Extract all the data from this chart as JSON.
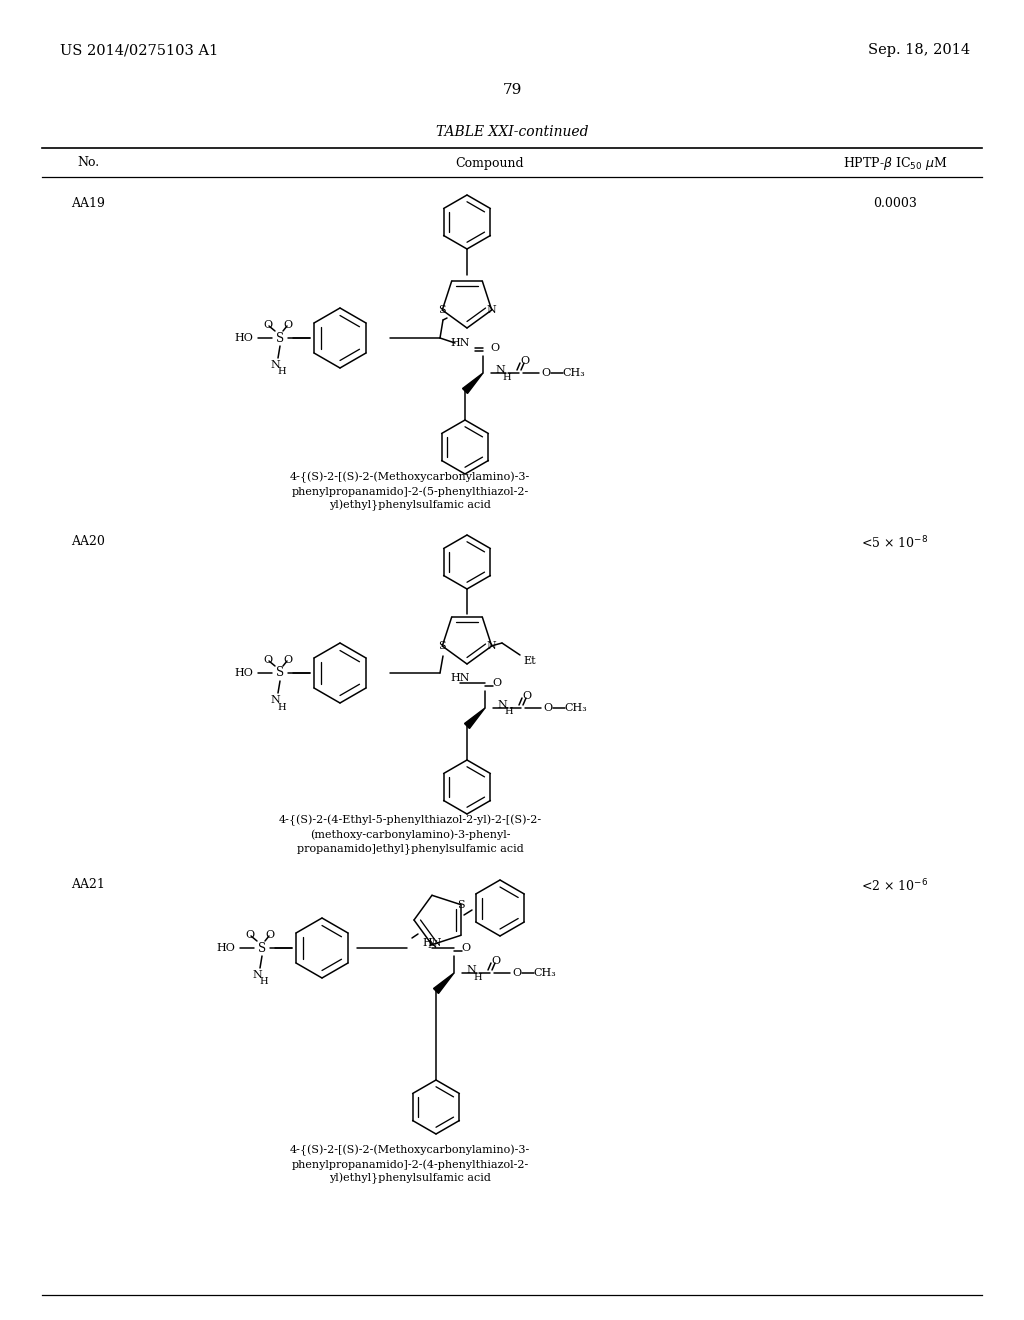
{
  "background_color": "#ffffff",
  "page_header_left": "US 2014/0275103 A1",
  "page_header_right": "Sep. 18, 2014",
  "page_number": "79",
  "table_title": "TABLE XXI-continued",
  "col_headers": [
    "No.",
    "Compound",
    "HPTP-β IC₅₀ μM"
  ],
  "entries": [
    {
      "no": "AA19",
      "ic50": "0.0003",
      "caption_lines": [
        "4-{(S)-2-[(S)-2-(Methoxycarbonylamino)-3-",
        "phenylpropanamido]-2-(5-phenylthiazol-2-",
        "yl)ethyl}phenylsulfamic acid"
      ]
    },
    {
      "no": "AA20",
      "ic50": "<5 × 10⁻⁸",
      "caption_lines": [
        "4-{(S)-2-(4-Ethyl-5-phenylthiazol-2-yl)-2-[(S)-2-",
        "(methoxy-carbonylamino)-3-phenyl-",
        "propanamido]ethyl}phenylsulfamic acid"
      ]
    },
    {
      "no": "AA21",
      "ic50": "<2 × 10⁻⁶",
      "caption_lines": [
        "4-{(S)-2-[(S)-2-(Methoxycarbonylamino)-3-",
        "phenylpropanamido]-2-(4-phenylthiazol-2-",
        "yl)ethyl}phenylsulfamic acid"
      ]
    }
  ]
}
